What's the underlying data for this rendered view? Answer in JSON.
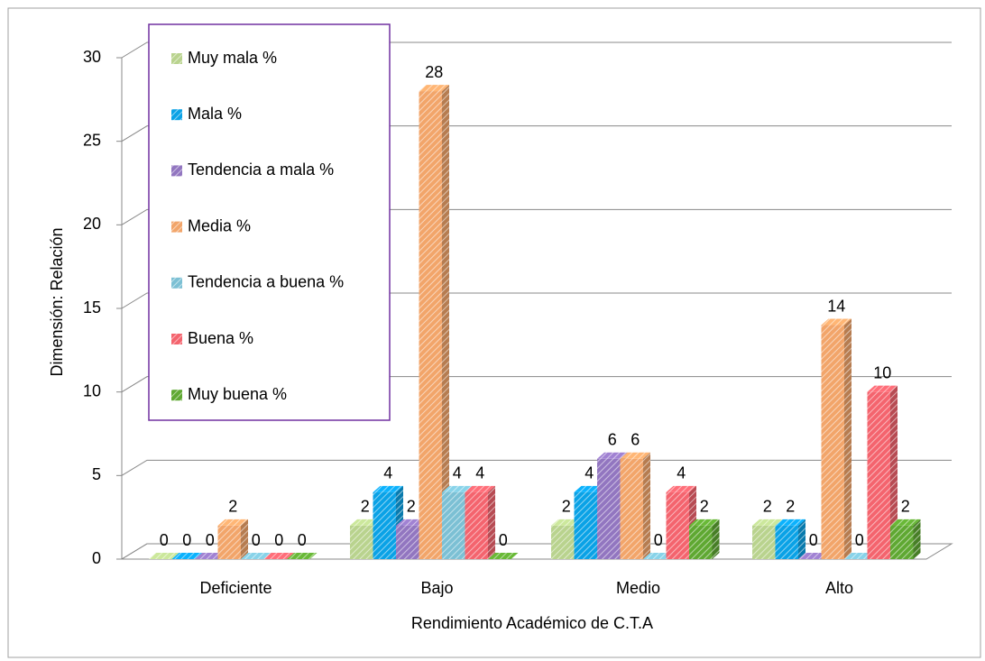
{
  "chart_data": {
    "type": "bar3d",
    "categories": [
      "Deficiente",
      "Bajo",
      "Medio",
      "Alto"
    ],
    "series": [
      {
        "name": "Muy mala %",
        "color": "#b9d38e",
        "values": [
          0,
          2,
          2,
          2
        ]
      },
      {
        "name": "Mala %",
        "color": "#0aa2e6",
        "values": [
          0,
          4,
          4,
          2
        ]
      },
      {
        "name": "Tendencia a mala %",
        "color": "#9276c0",
        "values": [
          0,
          2,
          6,
          0
        ]
      },
      {
        "name": "Media %",
        "color": "#f2a56a",
        "values": [
          2,
          28,
          6,
          14
        ]
      },
      {
        "name": "Tendencia a buena %",
        "color": "#7cc0d4",
        "values": [
          0,
          4,
          0,
          0
        ]
      },
      {
        "name": "Buena %",
        "color": "#f4646e",
        "values": [
          0,
          4,
          4,
          10
        ]
      },
      {
        "name": "Muy buena %",
        "color": "#5fa832",
        "values": [
          0,
          0,
          2,
          2
        ]
      }
    ],
    "xlabel": "Rendimiento Académico de C.T.A",
    "ylabel": "Dimensión: Relación",
    "ylim": [
      0,
      30
    ],
    "yticks": [
      0,
      5,
      10,
      15,
      20,
      25,
      30
    ],
    "grid": true,
    "legend": "upper left"
  }
}
